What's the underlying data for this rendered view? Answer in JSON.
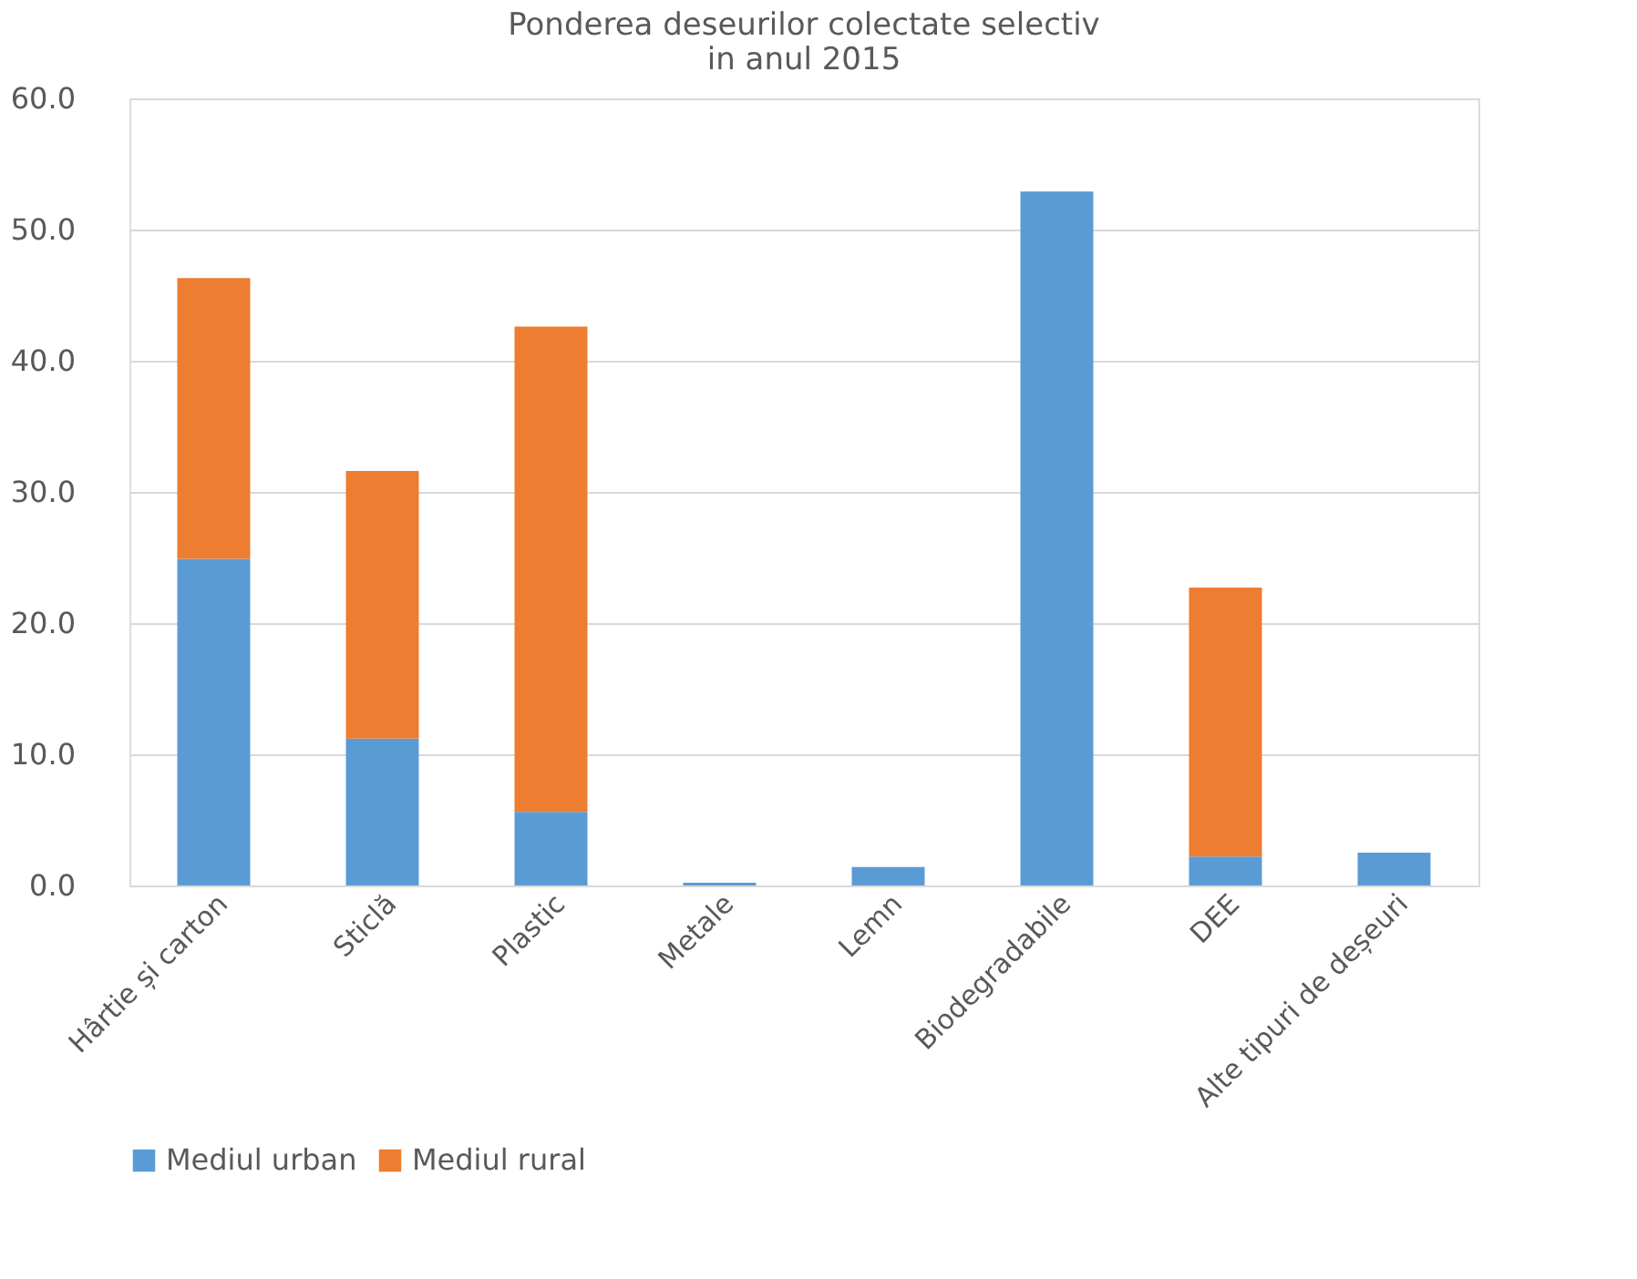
{
  "chart_data": {
    "type": "bar",
    "stacked": true,
    "title": "Ponderea deseurilor colectate selectiv\nin anul 2015",
    "categories": [
      "Hârtie și carton",
      "Sticlă",
      "Plastic",
      "Metale",
      "Lemn",
      "Biodegradabile",
      "DEE",
      "Alte tipuri de deșeuri"
    ],
    "series": [
      {
        "name": "Mediul urban",
        "color": "#5b9bd5",
        "values": [
          24.9,
          11.2,
          5.6,
          0.2,
          1.4,
          52.9,
          2.2,
          2.5
        ]
      },
      {
        "name": "Mediul rural",
        "color": "#ed7d31",
        "values": [
          21.4,
          20.4,
          37.0,
          null,
          null,
          null,
          20.5,
          null
        ]
      }
    ],
    "ylim": [
      0,
      60
    ],
    "yticks": [
      {
        "value": 0,
        "label": "0.0"
      },
      {
        "value": 10,
        "label": "10.0"
      },
      {
        "value": 20,
        "label": "20.0"
      },
      {
        "value": 30,
        "label": "30.0"
      },
      {
        "value": 40,
        "label": "40.0"
      },
      {
        "value": 50,
        "label": "50.0"
      },
      {
        "value": 60,
        "label": "60.0"
      }
    ],
    "grid": "y",
    "legend": "bottom"
  }
}
